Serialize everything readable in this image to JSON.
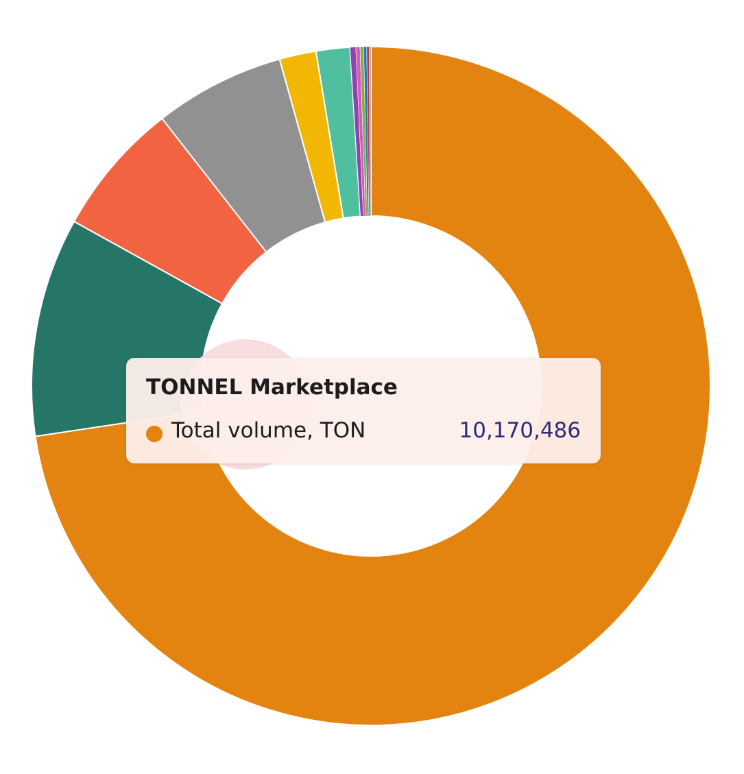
{
  "chart_data": {
    "type": "pie",
    "title": "",
    "donut": true,
    "slices": [
      {
        "label": "TONNEL Marketplace",
        "value": 10170486,
        "color": "#e38411"
      },
      {
        "label": "",
        "value": 1460000,
        "color": "#267668"
      },
      {
        "label": "",
        "value": 895000,
        "color": "#f26342"
      },
      {
        "label": "",
        "value": 870000,
        "color": "#919191"
      },
      {
        "label": "",
        "value": 245000,
        "color": "#f2b705"
      },
      {
        "label": "",
        "value": 225000,
        "color": "#4fbfa0"
      },
      {
        "label": "",
        "value": 38000,
        "color": "#8e44ad"
      },
      {
        "label": "",
        "value": 28000,
        "color": "#d959b8"
      },
      {
        "label": "",
        "value": 24000,
        "color": "#7cb342"
      },
      {
        "label": "",
        "value": 20000,
        "color": "#3b6fb6"
      },
      {
        "label": "",
        "value": 16000,
        "color": "#c0392b"
      },
      {
        "label": "",
        "value": 12000,
        "color": "#9e9e9e"
      }
    ],
    "highlighted_slice": 0,
    "legend": "none"
  },
  "tooltip": {
    "title": "TONNEL Marketplace",
    "series_name": "Total volume, TON",
    "value": "10,170,486",
    "dot_color": "#e38411",
    "value_color": "#2d2a7a"
  }
}
